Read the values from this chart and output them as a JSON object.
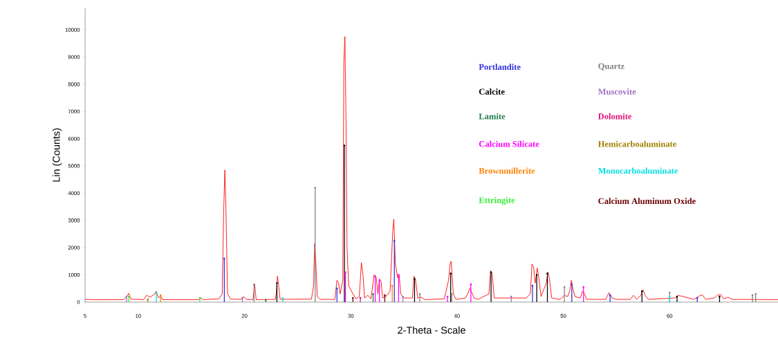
{
  "chart_data": {
    "type": "line",
    "xlabel": "2-Theta - Scale",
    "ylabel": "Lin (Counts)",
    "xlim": [
      5,
      70.2
    ],
    "ylim": [
      0,
      10800
    ],
    "xticks": [
      5,
      10,
      20,
      30,
      40,
      50,
      60
    ],
    "yticks": [
      0,
      1000,
      2000,
      3000,
      4000,
      5000,
      6000,
      7000,
      8000,
      9000,
      10000
    ],
    "grid": false,
    "marker": "none",
    "line_style": "solid",
    "series": [
      {
        "name": "Portlandite",
        "type": "lollipop",
        "color": "#3030e0",
        "x": [
          18.1,
          28.7,
          34.1,
          47.1,
          50.8,
          54.4,
          62.6
        ],
        "values": [
          1600,
          500,
          2250,
          600,
          650,
          250,
          150
        ]
      },
      {
        "name": "Quartz",
        "type": "lollipop",
        "color": "#808080",
        "x": [
          20.9,
          26.65,
          36.5,
          39.5,
          50.1,
          60.0,
          67.8,
          68.1
        ],
        "values": [
          650,
          4200,
          300,
          300,
          550,
          350,
          250,
          300
        ]
      },
      {
        "name": "Calcite",
        "type": "lollipop",
        "color": "#000000",
        "x": [
          23.05,
          29.4,
          36.0,
          39.4,
          43.2,
          47.5,
          48.5,
          57.4,
          60.7,
          64.7
        ],
        "values": [
          700,
          5750,
          850,
          1050,
          1100,
          1000,
          1050,
          400,
          200,
          200
        ]
      },
      {
        "name": "Muscovite",
        "type": "lollipop",
        "color": "#a070c0",
        "x": [
          8.9,
          19.8,
          34.9,
          45.1
        ],
        "values": [
          200,
          150,
          200,
          200
        ]
      },
      {
        "name": "Lamite",
        "type": "lollipop",
        "color": "#1a7a4a",
        "x": [
          22.0,
          32.1
        ],
        "values": [
          80,
          300
        ]
      },
      {
        "name": "Dolomite",
        "type": "lollipop",
        "color": "#e0107a",
        "x": [
          30.9
        ],
        "values": [
          150
        ]
      },
      {
        "name": "Calcium Silicate",
        "type": "lollipop",
        "color": "#ff00ff",
        "x": [
          29.5,
          32.3,
          32.7,
          34.5,
          39.1,
          41.3,
          51.9
        ],
        "values": [
          1100,
          950,
          800,
          1000,
          200,
          650,
          550
        ]
      },
      {
        "name": "Hemicarboaluminate",
        "type": "lollipop",
        "color": "#a08000",
        "x": [
          10.9
        ],
        "values": [
          100
        ]
      },
      {
        "name": "Brownmillerite",
        "type": "lollipop",
        "color": "#ff8000",
        "x": [
          12.1,
          33.9
        ],
        "values": [
          250,
          600
        ]
      },
      {
        "name": "Monocarboaluminate",
        "type": "lollipop",
        "color": "#00e0e0",
        "x": [
          11.7,
          23.6,
          60.0
        ],
        "values": [
          350,
          150,
          200
        ]
      },
      {
        "name": "Ettringite",
        "type": "lollipop",
        "color": "#33ee33",
        "x": [
          9.1,
          15.8
        ],
        "values": [
          200,
          150
        ]
      },
      {
        "name": "Calcium Aluminum Oxide",
        "type": "lollipop",
        "color": "#6b0000",
        "x": [
          30.2,
          33.2
        ],
        "values": [
          150,
          250
        ]
      },
      {
        "color": "#ff0000",
        "x": [
          5,
          6,
          8.6,
          8.9,
          9.1,
          9.3,
          10.5,
          10.8,
          11.1,
          11.5,
          11.7,
          11.9,
          12.1,
          12.3,
          15.7,
          15.9,
          16.1,
          17.6,
          17.9,
          18.05,
          18.15,
          18.25,
          18.4,
          18.7,
          19.7,
          19.9,
          20.2,
          20.8,
          20.95,
          21.1,
          22.9,
          23.0,
          23.1,
          23.2,
          23.35,
          26.3,
          26.5,
          26.6,
          26.7,
          26.85,
          27.1,
          28.5,
          28.7,
          28.85,
          29.0,
          29.25,
          29.35,
          29.45,
          29.55,
          29.65,
          29.8,
          30.2,
          30.5,
          30.8,
          31.0,
          31.15,
          31.3,
          31.6,
          31.9,
          32.2,
          32.4,
          32.55,
          32.7,
          32.85,
          33.0,
          33.3,
          33.7,
          33.95,
          34.05,
          34.2,
          34.4,
          34.55,
          34.7,
          35.0,
          35.8,
          35.95,
          36.1,
          36.3,
          36.6,
          37.0,
          38.8,
          39.2,
          39.35,
          39.45,
          39.65,
          39.9,
          40.8,
          41.0,
          41.2,
          41.4,
          41.6,
          42.0,
          43.0,
          43.15,
          43.3,
          43.5,
          45.0,
          46.5,
          46.9,
          47.05,
          47.2,
          47.35,
          47.55,
          47.7,
          47.9,
          48.4,
          48.55,
          48.7,
          48.9,
          49.7,
          50.1,
          50.4,
          50.6,
          50.75,
          50.9,
          51.1,
          51.6,
          51.8,
          52.0,
          52.2,
          54.0,
          54.3,
          54.6,
          55.0,
          56.3,
          56.6,
          56.9,
          57.3,
          57.5,
          57.7,
          58.0,
          60.5,
          60.8,
          61.3,
          61.8,
          62.3,
          62.9,
          63.1,
          63.4,
          64.2,
          64.5,
          64.8,
          65.1,
          65.5,
          65.9,
          70.2
        ],
        "values": [
          100,
          90,
          90,
          200,
          320,
          110,
          90,
          250,
          180,
          280,
          400,
          150,
          230,
          90,
          90,
          150,
          90,
          120,
          300,
          3500,
          4850,
          3450,
          300,
          110,
          100,
          200,
          100,
          90,
          650,
          90,
          100,
          350,
          950,
          650,
          100,
          110,
          600,
          2150,
          1550,
          200,
          100,
          100,
          800,
          700,
          300,
          800,
          8850,
          9750,
          6700,
          2000,
          600,
          300,
          120,
          200,
          1450,
          1000,
          150,
          250,
          120,
          1000,
          900,
          300,
          850,
          750,
          150,
          200,
          400,
          2600,
          3050,
          1400,
          900,
          1000,
          300,
          150,
          150,
          950,
          800,
          150,
          180,
          90,
          120,
          800,
          1400,
          1500,
          300,
          100,
          150,
          300,
          500,
          350,
          150,
          100,
          300,
          1150,
          1050,
          150,
          150,
          150,
          300,
          1400,
          1300,
          700,
          1250,
          900,
          200,
          700,
          1100,
          850,
          150,
          100,
          250,
          200,
          400,
          800,
          500,
          200,
          150,
          400,
          300,
          100,
          100,
          350,
          150,
          100,
          100,
          250,
          100,
          250,
          450,
          250,
          100,
          150,
          250,
          200,
          150,
          100,
          250,
          250,
          100,
          150,
          250,
          280,
          120,
          180,
          100,
          90
        ]
      }
    ]
  }
}
